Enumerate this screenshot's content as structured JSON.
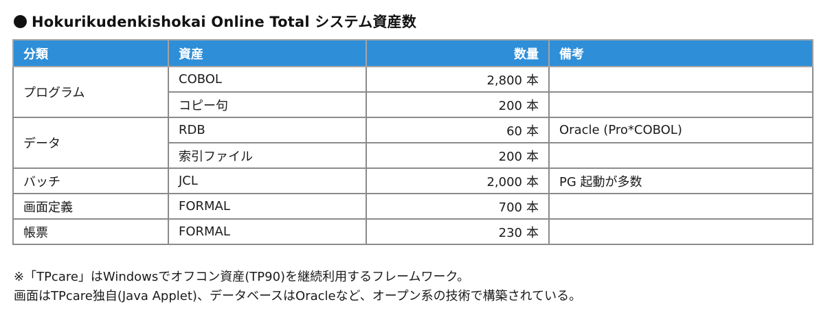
{
  "title": {
    "text": "Hokurikudenkishokai Online Total システム資産数"
  },
  "table": {
    "headers": {
      "category": "分類",
      "asset": "資産",
      "quantity": "数量",
      "note": "備考"
    },
    "groups": [
      {
        "category": "プログラム",
        "rows": [
          {
            "asset": "COBOL",
            "quantity": "2,800",
            "unit": "本",
            "note": ""
          },
          {
            "asset": "コピー句",
            "quantity": "200",
            "unit": "本",
            "note": ""
          }
        ]
      },
      {
        "category": "データ",
        "rows": [
          {
            "asset": "RDB",
            "quantity": "60",
            "unit": "本",
            "note": "Oracle (Pro*COBOL)"
          },
          {
            "asset": "索引ファイル",
            "quantity": "200",
            "unit": "本",
            "note": ""
          }
        ]
      },
      {
        "category": "バッチ",
        "rows": [
          {
            "asset": "JCL",
            "quantity": "2,000",
            "unit": "本",
            "note": "PG 起動が多数"
          }
        ]
      },
      {
        "category": "画面定義",
        "rows": [
          {
            "asset": "FORMAL",
            "quantity": "700",
            "unit": "本",
            "note": ""
          }
        ]
      },
      {
        "category": "帳票",
        "rows": [
          {
            "asset": "FORMAL",
            "quantity": "230",
            "unit": "本",
            "note": ""
          }
        ]
      }
    ]
  },
  "notes": [
    "※「TPcare」はWindowsでオフコン資産(TP90)を継続利用するフレームワーク。",
    "画面はTPcare独自(Java Applet)、データベースはOracleなど、オープン系の技術で構築されている。"
  ]
}
